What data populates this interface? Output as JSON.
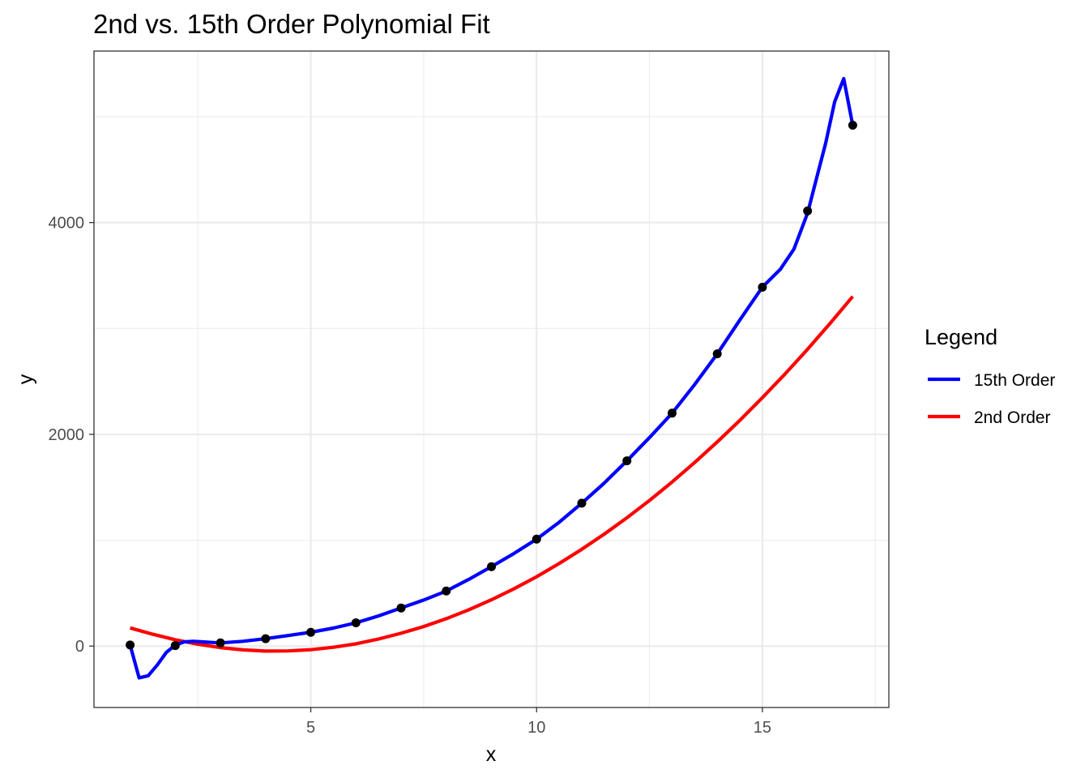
{
  "chart_data": {
    "type": "line",
    "title": "2nd vs. 15th Order Polynomial Fit",
    "xlabel": "x",
    "ylabel": "y",
    "xlim": [
      0.2,
      17.8
    ],
    "ylim": [
      -580,
      5620
    ],
    "x_ticks": [
      5,
      10,
      15
    ],
    "y_ticks": [
      0,
      2000,
      4000
    ],
    "x_minor_grid": [
      2.5,
      7.5,
      12.5,
      17.5
    ],
    "y_minor_grid": [
      1000,
      3000,
      5000
    ],
    "grid": true,
    "legend": {
      "title": "Legend",
      "position": "right"
    },
    "points": {
      "color": "#000000",
      "x": [
        1,
        2,
        3,
        4,
        5,
        6,
        7,
        8,
        9,
        10,
        11,
        12,
        13,
        14,
        15,
        16,
        17
      ],
      "y": [
        10,
        5,
        30,
        70,
        130,
        220,
        360,
        520,
        750,
        1010,
        1350,
        1750,
        2200,
        2760,
        3390,
        4110,
        4920
      ]
    },
    "series": [
      {
        "name": "15th Order",
        "color": "#0000ff",
        "x": [
          1,
          1.2,
          1.4,
          1.6,
          1.8,
          2,
          2.2,
          2.4,
          2.6,
          2.8,
          3,
          3.5,
          4,
          4.5,
          5,
          5.5,
          6,
          6.5,
          7,
          7.5,
          8,
          8.5,
          9,
          9.5,
          10,
          10.5,
          11,
          11.5,
          12,
          12.5,
          13,
          13.5,
          14,
          14.5,
          15,
          15.4,
          15.7,
          16,
          16.2,
          16.4,
          16.6,
          16.8,
          17
        ],
        "y": [
          10,
          -300,
          -280,
          -180,
          -60,
          10,
          40,
          45,
          40,
          35,
          30,
          45,
          70,
          100,
          130,
          170,
          220,
          285,
          360,
          435,
          520,
          630,
          750,
          875,
          1010,
          1170,
          1350,
          1540,
          1750,
          1970,
          2200,
          2470,
          2760,
          3080,
          3390,
          3560,
          3750,
          4090,
          4420,
          4750,
          5140,
          5360,
          4920
        ]
      },
      {
        "name": "2nd Order",
        "color": "#ff0000",
        "x": [
          1,
          1.5,
          2,
          2.5,
          3,
          3.5,
          4,
          4.5,
          5,
          5.5,
          6,
          6.5,
          7,
          7.5,
          8,
          8.5,
          9,
          9.5,
          10,
          10.5,
          11,
          11.5,
          12,
          12.5,
          13,
          13.5,
          14,
          14.5,
          15,
          15.5,
          16,
          16.5,
          17
        ],
        "y": [
          172,
          112,
          60,
          18,
          -14,
          -36,
          -47,
          -46,
          -34,
          -11,
          22,
          67,
          121,
          185,
          259,
          343,
          437,
          541,
          655,
          780,
          914,
          1058,
          1212,
          1376,
          1550,
          1734,
          1928,
          2132,
          2346,
          2570,
          2804,
          3048,
          3302
        ]
      }
    ]
  }
}
